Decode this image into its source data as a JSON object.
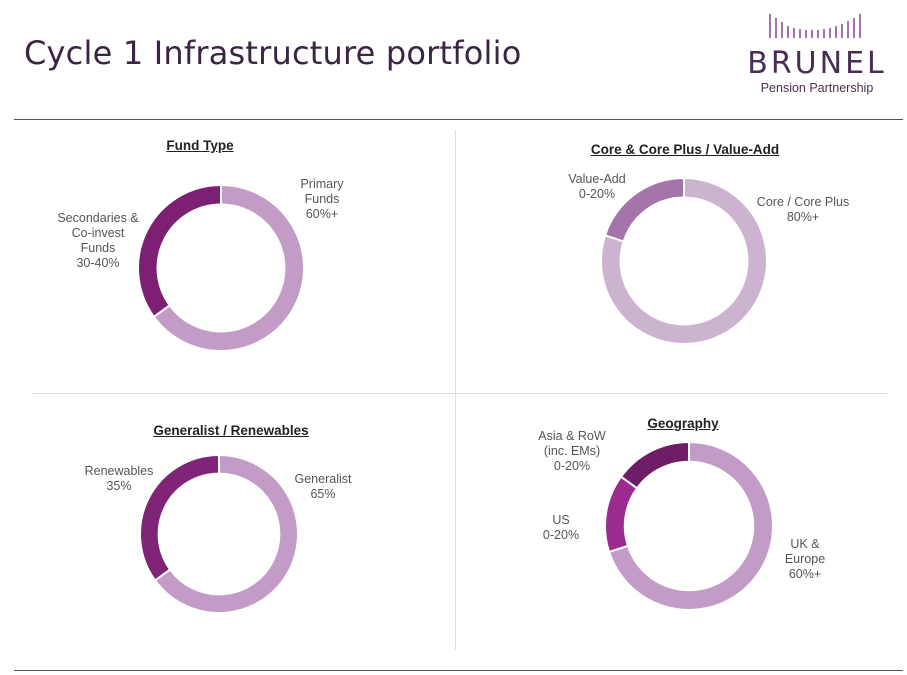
{
  "page": {
    "title": "Cycle 1 Infrastructure portfolio"
  },
  "logo": {
    "brand": "BRUNEL",
    "subtitle": "Pension Partnership"
  },
  "colors": {
    "light": "#c29cc6",
    "light_alt": "#ccb3cf",
    "mid": "#a574ab",
    "dark": "#7f2477",
    "darker": "#7d1f72",
    "vivid": "#9b2b8e",
    "deep": "#6e1d66"
  },
  "chart_data": [
    {
      "type": "pie",
      "title": "Fund Type",
      "slices": [
        {
          "label_lines": [
            "Primary",
            "Funds",
            "60%+"
          ],
          "value": 65,
          "color": "#c29cc6"
        },
        {
          "label_lines": [
            "Secondaries &",
            "Co-invest",
            "Funds",
            "30-40%"
          ],
          "value": 35,
          "color": "#7d1f72"
        }
      ]
    },
    {
      "type": "pie",
      "title": "Core & Core Plus / Value-Add",
      "slices": [
        {
          "label_lines": [
            "Core / Core Plus",
            "80%+"
          ],
          "value": 80,
          "color": "#ccb3cf"
        },
        {
          "label_lines": [
            "Value-Add",
            "0-20%"
          ],
          "value": 20,
          "color": "#a574ab"
        }
      ]
    },
    {
      "type": "pie",
      "title": "Generalist / Renewables",
      "slices": [
        {
          "label_lines": [
            "Generalist",
            "65%"
          ],
          "value": 65,
          "color": "#c29cc6"
        },
        {
          "label_lines": [
            "Renewables",
            "35%"
          ],
          "value": 35,
          "color": "#7f2477"
        }
      ]
    },
    {
      "type": "pie",
      "title": "Geography",
      "slices": [
        {
          "label_lines": [
            "UK &",
            "Europe",
            "60%+"
          ],
          "value": 70,
          "color": "#c29cc6"
        },
        {
          "label_lines": [
            "US",
            "0-20%"
          ],
          "value": 15,
          "color": "#9b2b8e"
        },
        {
          "label_lines": [
            "Asia & RoW",
            "(inc. EMs)",
            "0-20%"
          ],
          "value": 15,
          "color": "#6e1d66"
        }
      ]
    }
  ]
}
